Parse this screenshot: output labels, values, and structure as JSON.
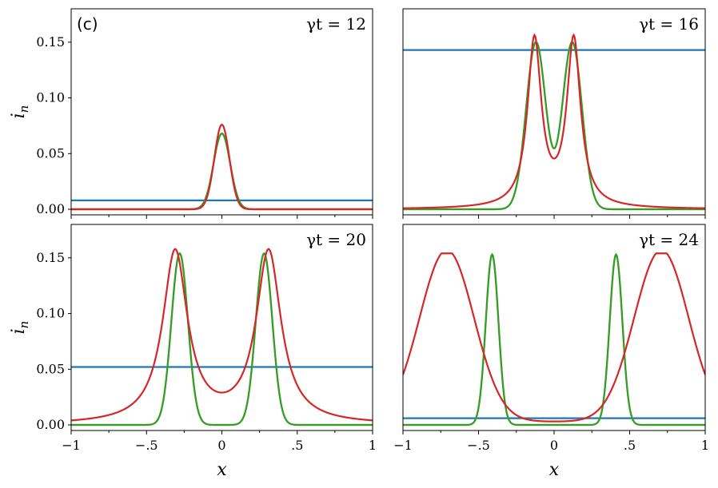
{
  "figure": {
    "panel_tag": "(c)",
    "ylabel": "i_n",
    "xlabel": "x"
  },
  "colors": {
    "blue": "#1f77b4",
    "orange": "#ff7f0e",
    "green": "#2ca02c",
    "red": "#d62728"
  },
  "chart_data": [
    {
      "type": "line",
      "annotation": "γt = 12",
      "xlim": [
        -1,
        1
      ],
      "ylim": [
        -0.005,
        0.18
      ],
      "yticks": [
        0.0,
        0.05,
        0.1,
        0.15
      ],
      "ytick_labels": [
        "0.00",
        "0.05",
        "0.10",
        "0.15"
      ],
      "show_yticklabels": true,
      "show_xticklabels": false,
      "series": [
        {
          "color": "blue",
          "kind": "constant",
          "value": 0.008
        },
        {
          "color": "orange",
          "kind": "peaks",
          "centers": [
            0
          ],
          "amp": 0.068,
          "width": 0.055,
          "shape": "gauss",
          "baseline": 0
        },
        {
          "color": "green",
          "kind": "peaks",
          "centers": [
            0
          ],
          "amp": 0.068,
          "width": 0.055,
          "shape": "gauss",
          "baseline": 0
        },
        {
          "color": "red",
          "kind": "peaks",
          "centers": [
            0
          ],
          "amp": 0.076,
          "width": 0.05,
          "shape": "gauss",
          "baseline": 0
        }
      ]
    },
    {
      "type": "line",
      "annotation": "γt = 16",
      "xlim": [
        -1,
        1
      ],
      "ylim": [
        -0.005,
        0.18
      ],
      "show_yticklabels": false,
      "show_xticklabels": false,
      "series": [
        {
          "color": "blue",
          "kind": "constant",
          "value": 0.143
        },
        {
          "color": "orange",
          "kind": "peaks",
          "centers": [
            -0.12,
            0.12
          ],
          "amp": 0.15,
          "width": 0.065,
          "shape": "gauss",
          "baseline": 0
        },
        {
          "color": "green",
          "kind": "peaks",
          "centers": [
            -0.12,
            0.12
          ],
          "amp": 0.15,
          "width": 0.065,
          "shape": "gauss",
          "baseline": 0
        },
        {
          "color": "red",
          "kind": "peaks",
          "centers": [
            -0.13,
            0.13
          ],
          "amp": 0.15,
          "width": 0.055,
          "shape": "lorentz",
          "baseline": 0
        }
      ]
    },
    {
      "type": "line",
      "annotation": "γt = 20",
      "xlim": [
        -1,
        1
      ],
      "ylim": [
        -0.005,
        0.18
      ],
      "yticks": [
        0.0,
        0.05,
        0.1,
        0.15
      ],
      "ytick_labels": [
        "0.00",
        "0.05",
        "0.10",
        "0.15"
      ],
      "show_yticklabels": true,
      "show_xticklabels": true,
      "series": [
        {
          "color": "blue",
          "kind": "constant",
          "value": 0.052
        },
        {
          "color": "orange",
          "kind": "peaks",
          "centers": [
            -0.28,
            0.28
          ],
          "amp": 0.154,
          "width": 0.055,
          "shape": "gauss",
          "baseline": 0
        },
        {
          "color": "green",
          "kind": "peaks",
          "centers": [
            -0.28,
            0.28
          ],
          "amp": 0.154,
          "width": 0.055,
          "shape": "gauss",
          "baseline": 0
        },
        {
          "color": "red",
          "kind": "peaks",
          "centers": [
            -0.31,
            0.31
          ],
          "amp": 0.154,
          "width": 0.1,
          "shape": "lorentz",
          "baseline": 0
        }
      ]
    },
    {
      "type": "line",
      "annotation": "γt = 24",
      "xlim": [
        -1,
        1
      ],
      "ylim": [
        -0.005,
        0.18
      ],
      "show_yticklabels": false,
      "show_xticklabels": true,
      "series": [
        {
          "color": "blue",
          "kind": "constant",
          "value": 0.006
        },
        {
          "color": "orange",
          "kind": "peaks",
          "centers": [
            -0.41,
            0.41
          ],
          "amp": 0.153,
          "width": 0.042,
          "shape": "gauss",
          "baseline": 0
        },
        {
          "color": "green",
          "kind": "peaks",
          "centers": [
            -0.41,
            0.41
          ],
          "amp": 0.153,
          "width": 0.042,
          "shape": "gauss",
          "baseline": 0
        },
        {
          "color": "red",
          "kind": "cosine_pair",
          "centers": [
            -0.71,
            0.71
          ],
          "amp": 0.154,
          "width": 0.18,
          "baseline": 0.003
        }
      ]
    }
  ],
  "xticks": {
    "values": [
      -1,
      -0.5,
      0,
      0.5,
      1
    ],
    "labels": [
      "−1",
      "−.5",
      "0",
      ".5",
      "1"
    ],
    "minor": [
      -0.75,
      -0.25,
      0.25,
      0.75
    ]
  }
}
